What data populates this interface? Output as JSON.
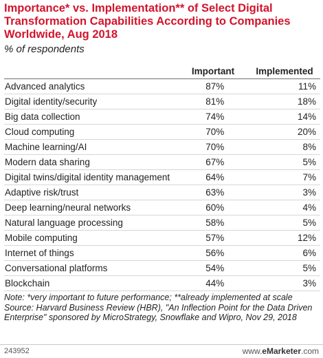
{
  "title": "Importance* vs. Implementation** of Select Digital Transformation Capabilities According to Companies Worldwide, Aug 2018",
  "subtitle": "% of respondents",
  "chart_data": {
    "type": "table",
    "columns": [
      "",
      "Important",
      "Implemented"
    ],
    "rows": [
      {
        "label": "Advanced analytics",
        "important": "87%",
        "implemented": "11%"
      },
      {
        "label": "Digital identity/security",
        "important": "81%",
        "implemented": "18%"
      },
      {
        "label": "Big data collection",
        "important": "74%",
        "implemented": "14%"
      },
      {
        "label": "Cloud computing",
        "important": "70%",
        "implemented": "20%"
      },
      {
        "label": "Machine learning/AI",
        "important": "70%",
        "implemented": "8%"
      },
      {
        "label": "Modern data sharing",
        "important": "67%",
        "implemented": "5%"
      },
      {
        "label": "Digital twins/digital identity management",
        "important": "64%",
        "implemented": "7%"
      },
      {
        "label": "Adaptive risk/trust",
        "important": "63%",
        "implemented": "3%"
      },
      {
        "label": "Deep learning/neural networks",
        "important": "60%",
        "implemented": "4%"
      },
      {
        "label": "Natural language processing",
        "important": "58%",
        "implemented": "5%"
      },
      {
        "label": "Mobile computing",
        "important": "57%",
        "implemented": "12%"
      },
      {
        "label": "Internet of things",
        "important": "56%",
        "implemented": "6%"
      },
      {
        "label": "Conversational platforms",
        "important": "54%",
        "implemented": "5%"
      },
      {
        "label": "Blockchain",
        "important": "44%",
        "implemented": "3%"
      }
    ]
  },
  "note": "Note: *very important to future performance; **already implemented at scale",
  "source": "Source: Harvard Business Review (HBR), \"An Inflection Point for the Data Driven Enterprise\" sponsored by MicroStrategy, Snowflake and Wipro, Nov 29, 2018",
  "footer": {
    "id": "243952",
    "brand_prefix": "www.",
    "brand_name": "eMarketer",
    "brand_suffix": ".com"
  },
  "colors": {
    "title": "#d2142c"
  }
}
